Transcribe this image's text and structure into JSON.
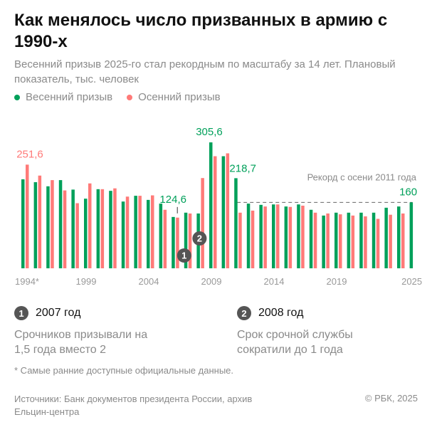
{
  "title": "Как менялось число призванных в армию с 1990-х",
  "subtitle": "Весенний призыв 2025-го стал рекордным по масштабу за 14 лет. Плановый показатель, тыс. человек",
  "legend": {
    "spring": "Весенний призыв",
    "autumn": "Осенний призыв"
  },
  "colors": {
    "spring": "#00a05a",
    "autumn": "#ff7a78"
  },
  "chart_data": {
    "type": "bar",
    "categories": [
      1994,
      1995,
      1996,
      1997,
      1998,
      1999,
      2000,
      2001,
      2002,
      2003,
      2004,
      2005,
      2006,
      2007,
      2008,
      2009,
      2010,
      2011,
      2012,
      2013,
      2014,
      2015,
      2016,
      2017,
      2018,
      2019,
      2020,
      2021,
      2022,
      2023,
      2024,
      2025
    ],
    "series": [
      {
        "name": "Весенний призыв",
        "values": [
          216,
          209,
          199,
          214,
          191,
          169,
          192,
          188,
          162,
          176,
          166,
          157,
          124.6,
          135,
          133,
          305.6,
          272,
          218.7,
          157,
          154,
          155,
          150,
          155,
          142,
          128,
          135,
          135,
          135,
          135,
          147,
          150,
          160
        ]
      },
      {
        "name": "Осенний призыв",
        "values": [
          251.6,
          225,
          214,
          189,
          158,
          206,
          192,
          194,
          174,
          176,
          177,
          142,
          123,
          133,
          219,
          272,
          279,
          135,
          140,
          150,
          155,
          149,
          152,
          135,
          133,
          131,
          128,
          126,
          120,
          130,
          133,
          null
        ]
      }
    ],
    "x_tick_labels": [
      "1994*",
      "1999",
      "2004",
      "2009",
      "2014",
      "2019",
      "2025"
    ],
    "x_tick_years": [
      1994,
      1999,
      2004,
      2009,
      2014,
      2019,
      2025
    ],
    "data_labels": [
      {
        "year": 1994,
        "series": "autumn",
        "text": "251,6"
      },
      {
        "year": 2006,
        "series": "spring",
        "text": "124,6"
      },
      {
        "year": 2009,
        "series": "spring",
        "text": "305,6"
      },
      {
        "year": 2011,
        "series": "spring",
        "text": "218,7"
      },
      {
        "year": 2025,
        "series": "spring",
        "text": "160"
      }
    ],
    "reference_line": {
      "value": 160,
      "label": "Рекорд с осени 2011 года"
    },
    "markers": [
      {
        "year": 2007,
        "text": "1"
      },
      {
        "year": 2008,
        "text": "2"
      }
    ],
    "ylim": [
      0,
      320
    ]
  },
  "notes": [
    {
      "num": "1",
      "head": "2007 год",
      "text": "Срочников призывали на 1,5 года вместо 2"
    },
    {
      "num": "2",
      "head": "2008 год",
      "text": "Срок срочной службы сократили до 1 года"
    }
  ],
  "footnote": "* Самые ранние доступные официальные данные.",
  "sources": "Источники: Банк документов президента России, архив Ельцин-центра",
  "copyright": "© РБК, 2025"
}
